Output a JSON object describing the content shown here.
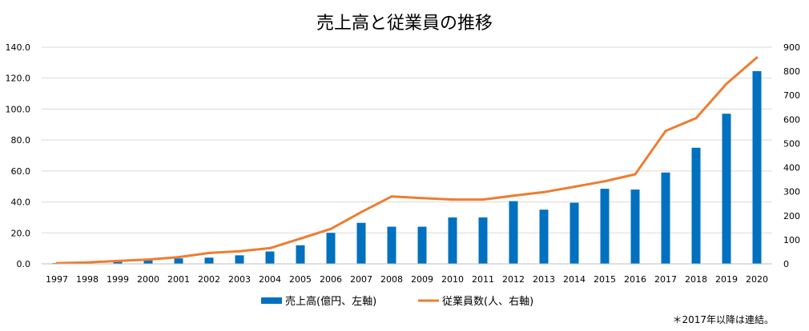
{
  "chart_data": {
    "type": "bar+line",
    "title": "売上高と従業員の推移",
    "categories": [
      "1997",
      "1998",
      "1999",
      "2000",
      "2001",
      "2002",
      "2003",
      "2004",
      "2005",
      "2006",
      "2007",
      "2008",
      "2009",
      "2010",
      "2011",
      "2012",
      "2013",
      "2014",
      "2015",
      "2016",
      "2017",
      "2018",
      "2019",
      "2020"
    ],
    "series": [
      {
        "name": "売上高(億円、左軸)",
        "type": "bar",
        "axis": "left",
        "color": "#0070C0",
        "values": [
          0.5,
          1.0,
          1.5,
          2.5,
          3.5,
          4.0,
          5.5,
          8.0,
          12.0,
          20.0,
          26.5,
          24.0,
          24.0,
          30.0,
          30.0,
          40.5,
          35.0,
          39.5,
          48.5,
          48.0,
          59.0,
          75.0,
          97.0,
          124.5
        ]
      },
      {
        "name": "従業員数(人、右軸)",
        "type": "line",
        "axis": "right",
        "color": "#ED7D31",
        "values": [
          3,
          6,
          12,
          18,
          28,
          45,
          52,
          65,
          105,
          145,
          215,
          280,
          273,
          267,
          267,
          283,
          298,
          320,
          343,
          372,
          552,
          605,
          748,
          857
        ]
      }
    ],
    "y_left": {
      "min": 0,
      "max": 140,
      "ticks": [
        "0.0",
        "20.0",
        "40.0",
        "60.0",
        "80.0",
        "100.0",
        "120.0",
        "140.0"
      ]
    },
    "y_right": {
      "min": 0,
      "max": 900,
      "ticks": [
        "0",
        "100",
        "200",
        "300",
        "400",
        "500",
        "600",
        "700",
        "800",
        "900"
      ]
    },
    "grid": true,
    "legend_position": "bottom",
    "note": "＊2017年以降は連結。"
  }
}
